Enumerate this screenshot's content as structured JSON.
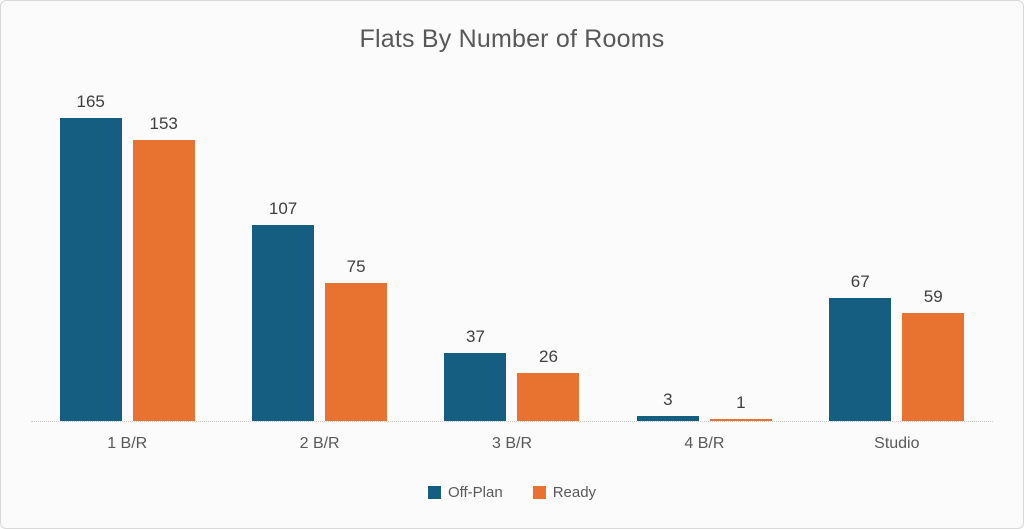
{
  "chart_data": {
    "type": "bar",
    "title": "Flats By Number of Rooms",
    "categories": [
      "1 B/R",
      "2 B/R",
      "3 B/R",
      "4 B/R",
      "Studio"
    ],
    "series": [
      {
        "name": "Off-Plan",
        "color": "#155e82",
        "values": [
          165,
          107,
          37,
          3,
          67
        ]
      },
      {
        "name": "Ready",
        "color": "#e8722f",
        "values": [
          153,
          75,
          26,
          1,
          59
        ]
      }
    ],
    "ylim": [
      0,
      165
    ],
    "value_labels": true,
    "grid": false,
    "legend_position": "bottom",
    "xlabel": "",
    "ylabel": ""
  },
  "card": {
    "background": "#fbfbfb",
    "border_color": "#d9d9d9",
    "baseline_color": "#cccccc"
  }
}
